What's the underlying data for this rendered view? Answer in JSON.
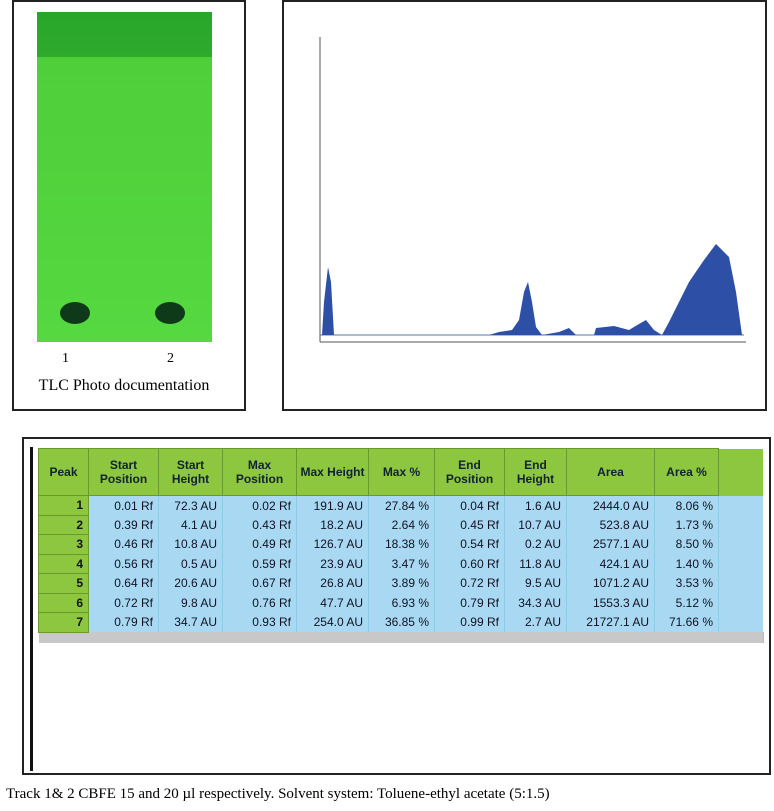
{
  "tlc": {
    "lanes": [
      "1",
      "2"
    ],
    "caption": "TLC Photo documentation"
  },
  "table": {
    "header": [
      "Peak",
      "Start Position",
      "Start Height",
      "Max Position",
      "Max Height",
      "Max %",
      "End Position",
      "End Height",
      "Area",
      "Area %"
    ],
    "rows": [
      [
        "1",
        "0.01 Rf",
        "72.3 AU",
        "0.02 Rf",
        "191.9 AU",
        "27.84 %",
        "0.04 Rf",
        "1.6 AU",
        "2444.0 AU",
        "8.06 %"
      ],
      [
        "2",
        "0.39 Rf",
        "4.1 AU",
        "0.43 Rf",
        "18.2 AU",
        "2.64 %",
        "0.45 Rf",
        "10.7 AU",
        "523.8 AU",
        "1.73 %"
      ],
      [
        "3",
        "0.46 Rf",
        "10.8 AU",
        "0.49 Rf",
        "126.7 AU",
        "18.38 %",
        "0.54 Rf",
        "0.2 AU",
        "2577.1 AU",
        "8.50 %"
      ],
      [
        "4",
        "0.56 Rf",
        "0.5 AU",
        "0.59 Rf",
        "23.9 AU",
        "3.47 %",
        "0.60 Rf",
        "11.8 AU",
        "424.1 AU",
        "1.40 %"
      ],
      [
        "5",
        "0.64 Rf",
        "20.6 AU",
        "0.67 Rf",
        "26.8 AU",
        "3.89 %",
        "0.72 Rf",
        "9.5 AU",
        "1071.2 AU",
        "3.53 %"
      ],
      [
        "6",
        "0.72 Rf",
        "9.8 AU",
        "0.76 Rf",
        "47.7 AU",
        "6.93 %",
        "0.79 Rf",
        "34.3 AU",
        "1553.3 AU",
        "5.12 %"
      ],
      [
        "7",
        "0.79 Rf",
        "34.7 AU",
        "0.93 Rf",
        "254.0 AU",
        "36.85 %",
        "0.99 Rf",
        "2.7 AU",
        "21727.1 AU",
        "71.66 %"
      ]
    ]
  },
  "caption": "Track 1& 2 CBFE 15 and 20 µl respectively. Solvent system: Toluene-ethyl acetate (5:1.5)"
}
